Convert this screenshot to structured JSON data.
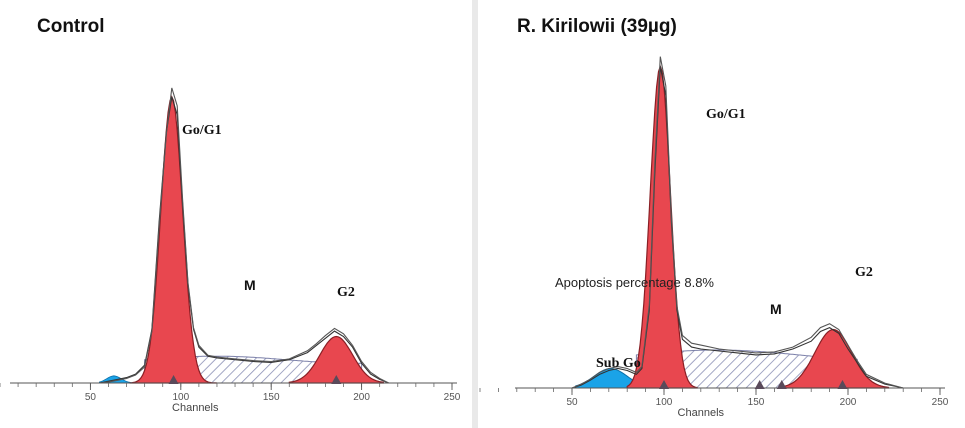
{
  "chart_data": [
    {
      "type": "area",
      "title": "Control",
      "xlabel": "Channels",
      "xlim": [
        0,
        250
      ],
      "x_ticks": [
        50,
        100,
        150,
        200,
        250
      ],
      "y_axis": "none",
      "grid": false,
      "labels": {
        "g0g1": "Go/G1",
        "m": "M",
        "g2": "G2"
      },
      "markers_x": [
        96,
        186
      ],
      "series": [
        {
          "x": [
            55,
            60,
            65,
            70,
            75,
            80,
            84,
            88,
            92,
            95,
            98,
            101,
            104,
            107,
            110,
            115,
            120,
            130,
            140,
            150,
            160,
            170,
            175,
            180,
            185,
            190,
            195,
            200,
            205,
            210,
            215
          ],
          "values": [
            0,
            2,
            4,
            6,
            10,
            20,
            60,
            180,
            280,
            320,
            300,
            200,
            110,
            60,
            40,
            30,
            28,
            26,
            24,
            23,
            26,
            34,
            42,
            50,
            58,
            52,
            40,
            22,
            10,
            4,
            0
          ]
        },
        {
          "x": [
            55,
            60,
            65,
            70,
            75,
            80,
            84,
            88,
            92,
            95,
            98,
            101,
            104,
            107,
            110,
            115,
            120,
            130,
            140,
            150,
            160,
            170,
            175,
            180,
            185,
            190,
            195,
            200,
            205,
            210,
            215
          ],
          "values": [
            0,
            1,
            3,
            5,
            9,
            18,
            58,
            175,
            278,
            330,
            310,
            205,
            112,
            62,
            42,
            31,
            29,
            27,
            25,
            24,
            27,
            36,
            44,
            53,
            61,
            55,
            42,
            24,
            12,
            5,
            0
          ]
        }
      ]
    },
    {
      "type": "area",
      "title": "R. Kirilowii (39µg)",
      "xlabel": "Channels",
      "xlim": [
        0,
        250
      ],
      "x_ticks": [
        50,
        100,
        150,
        200,
        250
      ],
      "y_axis": "none",
      "grid": false,
      "labels": {
        "subgo": "Sub Go",
        "g0g1": "Go/G1",
        "m": "M",
        "g2": "G2"
      },
      "annotations": [
        "Apoptosis percentage 8.8%"
      ],
      "markers_x": [
        100,
        152,
        164,
        197
      ],
      "series": [
        {
          "x": [
            50,
            55,
            60,
            65,
            70,
            75,
            80,
            85,
            88,
            92,
            95,
            98,
            101,
            104,
            107,
            110,
            115,
            120,
            130,
            140,
            150,
            160,
            170,
            180,
            185,
            190,
            195,
            200,
            205,
            210,
            220,
            230
          ],
          "values": [
            0,
            3,
            8,
            14,
            18,
            20,
            18,
            14,
            20,
            80,
            220,
            330,
            300,
            170,
            80,
            50,
            42,
            40,
            38,
            36,
            34,
            35,
            40,
            48,
            58,
            62,
            56,
            40,
            26,
            12,
            4,
            0
          ]
        },
        {
          "x": [
            50,
            55,
            60,
            65,
            70,
            75,
            80,
            85,
            88,
            92,
            95,
            98,
            101,
            104,
            107,
            110,
            115,
            120,
            130,
            140,
            150,
            160,
            170,
            180,
            185,
            190,
            195,
            200,
            205,
            210,
            220,
            230
          ],
          "values": [
            0,
            4,
            9,
            16,
            20,
            22,
            20,
            16,
            22,
            85,
            230,
            340,
            310,
            175,
            84,
            54,
            46,
            44,
            40,
            38,
            36,
            37,
            42,
            52,
            62,
            66,
            60,
            44,
            28,
            14,
            5,
            0
          ]
        }
      ]
    }
  ]
}
